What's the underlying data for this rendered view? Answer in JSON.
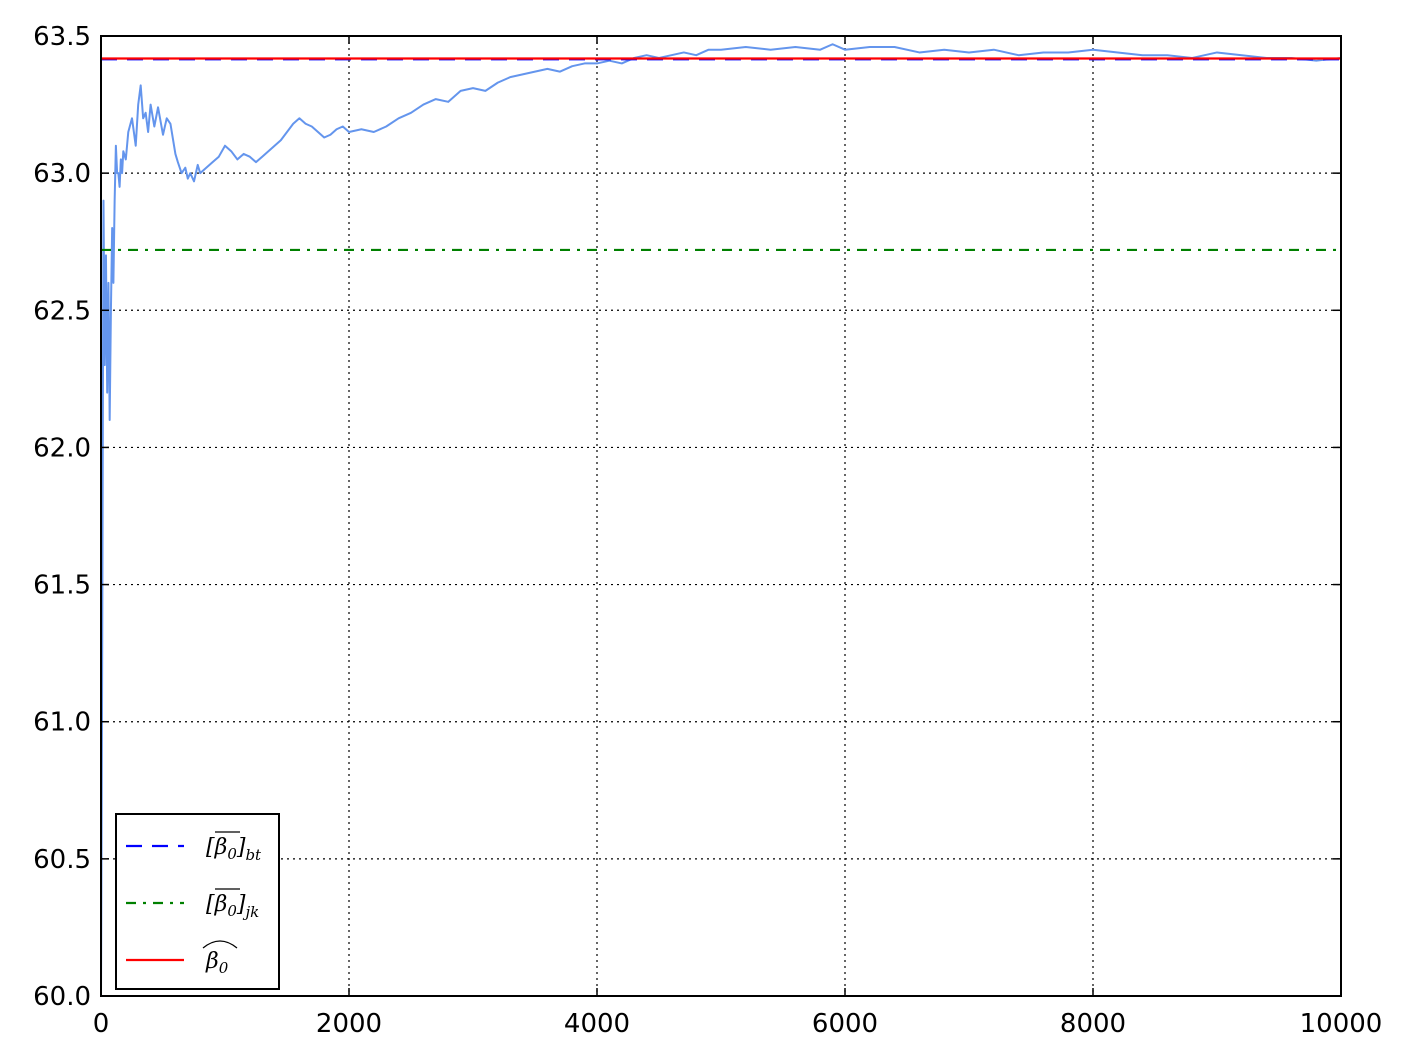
{
  "chart_data": {
    "type": "line",
    "title": "",
    "xlabel": "",
    "ylabel": "",
    "xlim": [
      0,
      10000
    ],
    "ylim": [
      60.0,
      63.5
    ],
    "grid": true,
    "grid_style": "dotted",
    "legend_position": "bottom-left",
    "x_ticks": [
      0,
      2000,
      4000,
      6000,
      8000,
      10000
    ],
    "x_tick_labels": [
      "0",
      "2000",
      "4000",
      "6000",
      "8000",
      "10000"
    ],
    "y_ticks": [
      60.0,
      60.5,
      61.0,
      61.5,
      62.0,
      62.5,
      63.0,
      63.5
    ],
    "y_tick_labels": [
      "60.0",
      "60.5",
      "61.0",
      "61.5",
      "62.0",
      "62.5",
      "63.0",
      "63.5"
    ],
    "series": [
      {
        "color": "#6495ed",
        "style": "solid",
        "x": [
          0,
          10,
          20,
          30,
          40,
          50,
          60,
          70,
          80,
          90,
          100,
          110,
          120,
          130,
          140,
          150,
          160,
          170,
          180,
          200,
          220,
          250,
          280,
          300,
          320,
          340,
          360,
          380,
          400,
          430,
          460,
          500,
          530,
          560,
          600,
          620,
          650,
          680,
          700,
          720,
          750,
          780,
          800,
          850,
          900,
          950,
          1000,
          1050,
          1100,
          1150,
          1200,
          1250,
          1300,
          1350,
          1400,
          1450,
          1500,
          1550,
          1600,
          1650,
          1700,
          1750,
          1800,
          1850,
          1900,
          1950,
          2000,
          2100,
          2200,
          2300,
          2400,
          2500,
          2600,
          2700,
          2800,
          2900,
          3000,
          3100,
          3200,
          3300,
          3400,
          3500,
          3600,
          3700,
          3800,
          3900,
          4000,
          4100,
          4200,
          4300,
          4400,
          4500,
          4600,
          4700,
          4800,
          4900,
          5000,
          5200,
          5400,
          5600,
          5800,
          5900,
          6000,
          6200,
          6400,
          6600,
          6800,
          7000,
          7200,
          7400,
          7600,
          7800,
          8000,
          8200,
          8400,
          8600,
          8800,
          9000,
          9200,
          9400,
          9600,
          9800,
          10000
        ],
        "values": [
          60.0,
          61.3,
          62.9,
          62.3,
          62.7,
          62.2,
          62.6,
          62.1,
          62.5,
          62.8,
          62.6,
          62.9,
          63.1,
          63.0,
          63.0,
          62.95,
          63.05,
          63.0,
          63.08,
          63.05,
          63.15,
          63.2,
          63.1,
          63.25,
          63.32,
          63.2,
          63.22,
          63.15,
          63.25,
          63.17,
          63.24,
          63.14,
          63.2,
          63.18,
          63.07,
          63.04,
          63.0,
          63.02,
          62.98,
          63.0,
          62.97,
          63.03,
          63.0,
          63.02,
          63.04,
          63.06,
          63.1,
          63.08,
          63.05,
          63.07,
          63.06,
          63.04,
          63.06,
          63.08,
          63.1,
          63.12,
          63.15,
          63.18,
          63.2,
          63.18,
          63.17,
          63.15,
          63.13,
          63.14,
          63.16,
          63.17,
          63.15,
          63.16,
          63.15,
          63.17,
          63.2,
          63.22,
          63.25,
          63.27,
          63.26,
          63.3,
          63.31,
          63.3,
          63.33,
          63.35,
          63.36,
          63.37,
          63.38,
          63.37,
          63.39,
          63.4,
          63.4,
          63.41,
          63.4,
          63.42,
          63.43,
          63.42,
          63.43,
          63.44,
          63.43,
          63.45,
          63.45,
          63.46,
          63.45,
          63.46,
          63.45,
          63.47,
          63.45,
          63.46,
          63.46,
          63.44,
          63.45,
          63.44,
          63.45,
          63.43,
          63.44,
          63.44,
          63.45,
          63.44,
          63.43,
          63.43,
          63.42,
          63.44,
          63.43,
          63.42,
          63.42,
          63.41,
          63.42
        ]
      },
      {
        "name": "$[\\overline{\\beta_0}]_{bt}$",
        "color": "#0000ff",
        "style": "dashed",
        "x": [
          0,
          10000
        ],
        "values": [
          63.415,
          63.415
        ]
      },
      {
        "name": "$[\\overline{\\beta_0}]_{jk}$",
        "color": "#008000",
        "style": "dash-dot",
        "x": [
          0,
          10000
        ],
        "values": [
          62.72,
          62.72
        ]
      },
      {
        "name": "$\\widehat{\\beta_0}$",
        "color": "#ff0000",
        "style": "solid",
        "x": [
          0,
          10000
        ],
        "values": [
          63.418,
          63.418
        ]
      }
    ]
  }
}
